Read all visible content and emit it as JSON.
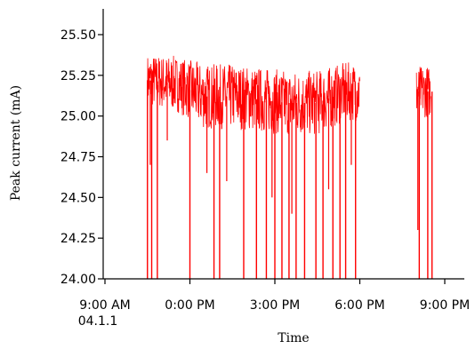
{
  "chart_data": {
    "type": "line",
    "title": "",
    "xlabel": "Time",
    "ylabel": "Peak current (mA)",
    "ylim": [
      24.0,
      25.5
    ],
    "xlim_hours": [
      9,
      21
    ],
    "y_ticks": [
      "24.00",
      "24.25",
      "24.50",
      "24.75",
      "25.00",
      "25.25",
      "25.50"
    ],
    "x_ticks": [
      {
        "hour": 9,
        "label": "9:00 AM",
        "sublabel": "04.1.1"
      },
      {
        "hour": 12,
        "label": "0:00 PM",
        "sublabel": ""
      },
      {
        "hour": 15,
        "label": "3:00 PM",
        "sublabel": ""
      },
      {
        "hour": 18,
        "label": "6:00 PM",
        "sublabel": ""
      },
      {
        "hour": 21,
        "label": "9:00 PM",
        "sublabel": ""
      }
    ],
    "series": [
      {
        "color": "#ff0000",
        "band": {
          "hours": [
            10.5,
            11.5,
            12.5,
            13.5,
            14.5,
            15.5,
            16.5,
            17.5,
            18.0
          ],
          "center": [
            25.22,
            25.2,
            25.12,
            25.12,
            25.1,
            25.08,
            25.08,
            25.15,
            25.15
          ],
          "halfwidth": [
            0.16,
            0.17,
            0.2,
            0.2,
            0.2,
            0.2,
            0.2,
            0.18,
            0.18
          ]
        },
        "band2": {
          "hours": [
            20.0,
            20.5
          ],
          "center": [
            25.15,
            25.15
          ],
          "halfwidth": [
            0.16,
            0.16
          ]
        },
        "gaps_hours": [
          [
            18.0,
            20.0
          ]
        ],
        "dropouts_hours": [
          10.5,
          10.65,
          10.85,
          12.0,
          12.85,
          13.05,
          13.9,
          14.35,
          14.7,
          15.0,
          15.25,
          15.5,
          15.75,
          16.05,
          16.45,
          16.7,
          17.05,
          17.3,
          17.5,
          17.85,
          20.1,
          20.4,
          20.55
        ],
        "partial_dips": [
          {
            "hour": 11.2,
            "to": 24.85
          },
          {
            "hour": 12.6,
            "to": 24.65
          },
          {
            "hour": 13.3,
            "to": 24.6
          },
          {
            "hour": 14.9,
            "to": 24.5
          },
          {
            "hour": 15.6,
            "to": 24.4
          },
          {
            "hour": 16.9,
            "to": 24.55
          },
          {
            "hour": 17.7,
            "to": 24.7
          },
          {
            "hour": 20.05,
            "to": 24.3
          },
          {
            "hour": 10.6,
            "to": 24.7
          }
        ]
      }
    ]
  }
}
